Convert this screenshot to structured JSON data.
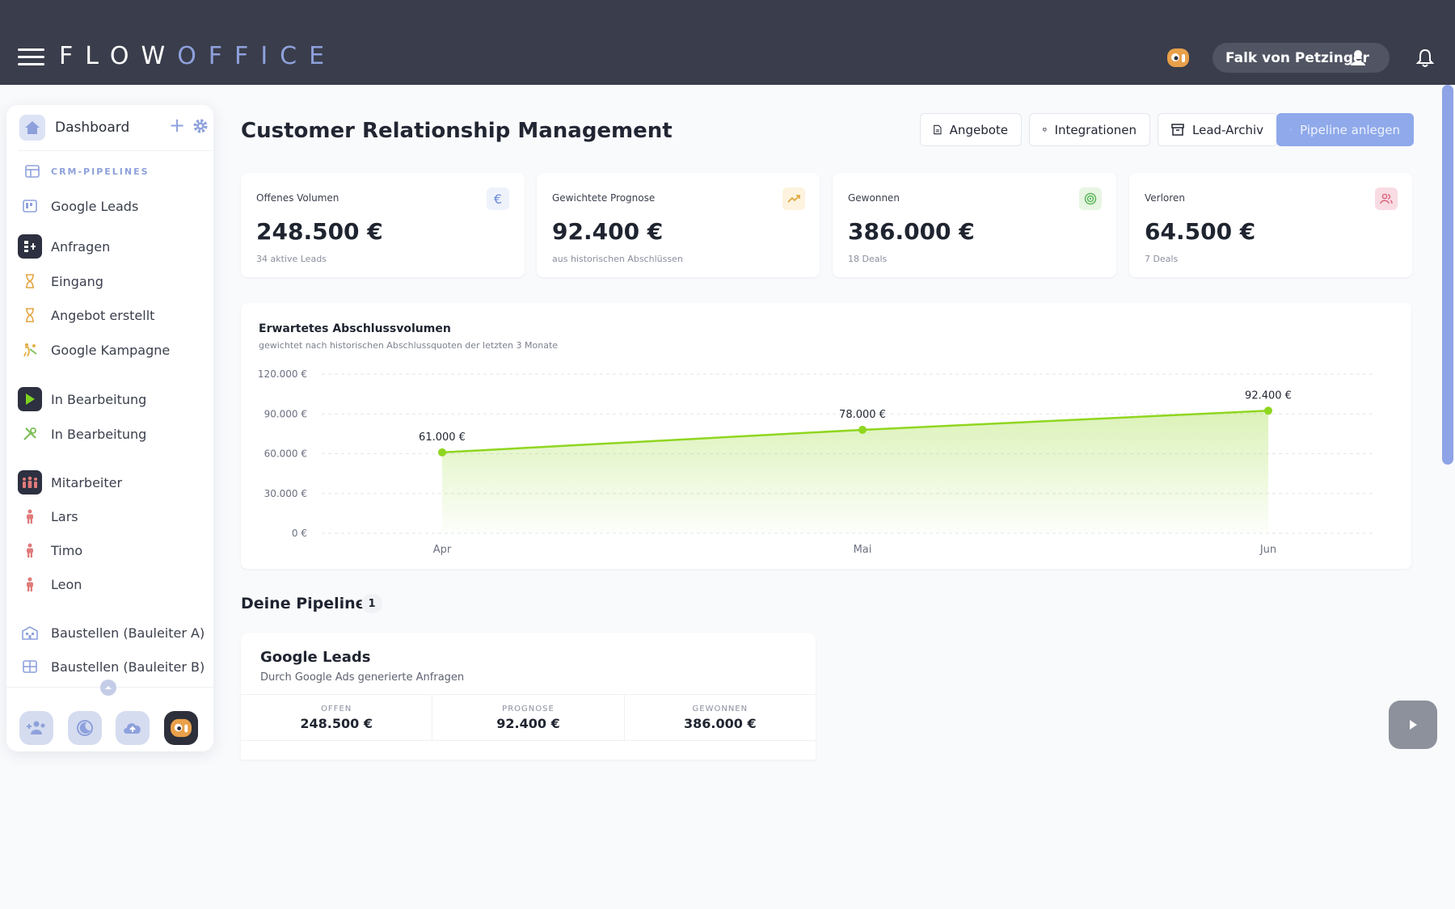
{
  "app": {
    "logo_bold": "FLOW",
    "logo_light": "OFFICE",
    "user_name": "Falk von Petzinger"
  },
  "sidebar": {
    "dashboard_label": "Dashboard",
    "section_label": "CRM-PIPELINES",
    "items": [
      {
        "label": "Google Leads",
        "icon": "kanban-icon"
      },
      {
        "label": "Anfragen",
        "icon": "org-chart-icon"
      },
      {
        "label": "Eingang",
        "icon": "hourglass-icon"
      },
      {
        "label": "Angebot erstellt",
        "icon": "hourglass-icon"
      },
      {
        "label": "Google Kampagne",
        "icon": "workers-icon"
      },
      {
        "label": "In Bearbeitung",
        "icon": "play-icon"
      },
      {
        "label": "In Bearbeitung",
        "icon": "tools-icon"
      },
      {
        "label": "Mitarbeiter",
        "icon": "team-icon"
      },
      {
        "label": "Lars",
        "icon": "person-icon"
      },
      {
        "label": "Timo",
        "icon": "person-icon"
      },
      {
        "label": "Leon",
        "icon": "person-icon"
      },
      {
        "label": "Baustellen (Bauleiter A)",
        "icon": "building-icon"
      },
      {
        "label": "Baustellen (Bauleiter B)",
        "icon": "grid-icon"
      }
    ]
  },
  "header": {
    "title": "Customer Relationship Management",
    "buttons": {
      "offers": "Angebote",
      "integrations": "Integrationen",
      "archive": "Lead-Archiv",
      "new_pipeline": "Pipeline anlegen"
    }
  },
  "kpis": [
    {
      "title": "Offenes Volumen",
      "value": "248.500 €",
      "sub": "34 aktive Leads",
      "icon": "euro-icon",
      "color": "#6b8bd9"
    },
    {
      "title": "Gewichtete Prognose",
      "value": "92.400 €",
      "sub": "aus historischen Abschlüssen",
      "icon": "trend-up-icon",
      "color": "#e0a43a"
    },
    {
      "title": "Gewonnen",
      "value": "386.000 €",
      "sub": "18 Deals",
      "icon": "target-icon",
      "color": "#5bb85a"
    },
    {
      "title": "Verloren",
      "value": "64.500 €",
      "sub": "7 Deals",
      "icon": "users-icon",
      "color": "#d9627a"
    }
  ],
  "chart": {
    "title": "Erwartetes Abschlussvolumen",
    "subtitle": "gewichtet nach historischen Abschlussquoten der letzten 3 Monate"
  },
  "chart_data": {
    "type": "area",
    "categories": [
      "Apr",
      "Mai",
      "Jun"
    ],
    "values": [
      61000,
      78000,
      92400
    ],
    "data_labels": [
      "61.000 €",
      "78.000 €",
      "92.400 €"
    ],
    "yticks": [
      "0 €",
      "30.000 €",
      "60.000 €",
      "90.000 €",
      "120.000 €"
    ],
    "ylim": [
      0,
      120000
    ],
    "grid": true,
    "color": "#8fd61f"
  },
  "pipelines": {
    "title": "Deine Pipelines",
    "count": "1",
    "cards": [
      {
        "name": "Google Leads",
        "desc": "Durch Google Ads generierte Anfragen",
        "stats": [
          {
            "k": "OFFEN",
            "v": "248.500 €"
          },
          {
            "k": "PROGNOSE",
            "v": "92.400 €"
          },
          {
            "k": "GEWONNEN",
            "v": "386.000 €"
          }
        ]
      }
    ]
  }
}
